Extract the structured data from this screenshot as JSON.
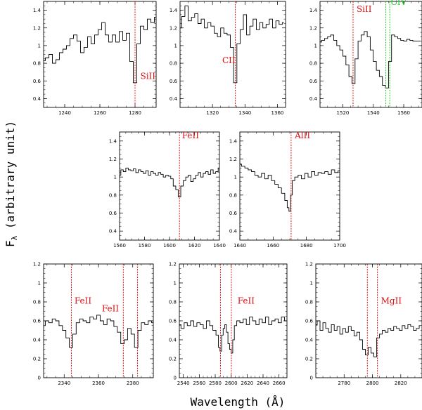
{
  "figure": {
    "xlabel": "Wavelength (Å)",
    "ylabel_symbol": "F",
    "ylabel_subscript": "λ",
    "ylabel_rest": " (arbitrary unit)"
  },
  "colors": {
    "frame": "#000000",
    "spectrum": "#000000",
    "red_line": "#dd1111",
    "green_line": "#22cc22"
  },
  "chart_data": [
    {
      "type": "line",
      "xlim": [
        1228,
        1292
      ],
      "ylim": [
        0.3,
        1.5
      ],
      "xticks": [
        1240,
        1260,
        1280
      ],
      "yticks": [
        0.4,
        0.6,
        0.8,
        1,
        1.2,
        1.4
      ],
      "lines": [
        {
          "wavelength": 1280,
          "color": "red"
        }
      ],
      "labels": [
        {
          "text": "SiII",
          "color": "red",
          "x": 1283,
          "y": 0.62
        }
      ],
      "spectrum": {
        "x": [
          1228,
          1230,
          1232,
          1234,
          1236,
          1238,
          1240,
          1242,
          1244,
          1246,
          1248,
          1250,
          1252,
          1254,
          1256,
          1258,
          1260,
          1262,
          1264,
          1266,
          1268,
          1270,
          1272,
          1274,
          1276,
          1278,
          1280,
          1282,
          1284,
          1286,
          1288,
          1290,
          1292
        ],
        "y": [
          0.83,
          0.86,
          0.9,
          0.8,
          0.84,
          0.92,
          0.96,
          1.0,
          1.08,
          1.12,
          1.05,
          0.92,
          0.98,
          1.1,
          1.02,
          1.12,
          1.18,
          1.26,
          1.12,
          1.04,
          1.12,
          1.04,
          1.16,
          1.06,
          1.14,
          0.82,
          0.58,
          1.02,
          1.22,
          1.18,
          1.3,
          1.26,
          1.32
        ]
      }
    },
    {
      "type": "line",
      "xlim": [
        1300,
        1365
      ],
      "ylim": [
        0.3,
        1.5
      ],
      "xticks": [
        1320,
        1340,
        1360
      ],
      "yticks": [
        0.4,
        0.6,
        0.8,
        1,
        1.2,
        1.4
      ],
      "lines": [
        {
          "wavelength": 1334,
          "color": "red"
        }
      ],
      "labels": [
        {
          "text": "CII",
          "color": "red",
          "x": 1326,
          "y": 0.8
        }
      ],
      "spectrum": {
        "x": [
          1300,
          1302,
          1304,
          1306,
          1308,
          1310,
          1312,
          1314,
          1316,
          1318,
          1320,
          1322,
          1324,
          1326,
          1328,
          1330,
          1332,
          1334,
          1336,
          1338,
          1340,
          1342,
          1344,
          1346,
          1348,
          1350,
          1352,
          1354,
          1356,
          1358,
          1360,
          1362,
          1364
        ],
        "y": [
          1.2,
          1.33,
          1.45,
          1.28,
          1.32,
          1.36,
          1.25,
          1.3,
          1.2,
          1.26,
          1.22,
          1.14,
          1.1,
          1.2,
          1.14,
          1.12,
          0.98,
          0.58,
          1.02,
          1.18,
          1.35,
          1.12,
          1.22,
          1.3,
          1.18,
          1.26,
          1.2,
          1.24,
          1.3,
          1.2,
          1.28,
          1.24,
          1.26
        ]
      }
    },
    {
      "type": "line",
      "xlim": [
        1505,
        1572
      ],
      "ylim": [
        0.3,
        1.5
      ],
      "xticks": [
        1520,
        1540,
        1560
      ],
      "yticks": [
        0.4,
        0.6,
        0.8,
        1,
        1.2,
        1.4
      ],
      "lines": [
        {
          "wavelength": 1526.7,
          "color": "red"
        },
        {
          "wavelength": 1548.2,
          "color": "green"
        },
        {
          "wavelength": 1550.8,
          "color": "green"
        }
      ],
      "labels": [
        {
          "text": "SiII",
          "color": "red",
          "x": 1529,
          "y": 1.38
        },
        {
          "text": "CIV",
          "color": "green",
          "x": 1551.5,
          "y": 1.46
        }
      ],
      "spectrum": {
        "x": [
          1505,
          1507,
          1509,
          1511,
          1513,
          1515,
          1517,
          1519,
          1521,
          1523,
          1525,
          1527,
          1529,
          1531,
          1533,
          1535,
          1537,
          1539,
          1541,
          1543,
          1545,
          1547,
          1549,
          1551,
          1553,
          1555,
          1557,
          1559,
          1561,
          1563,
          1565,
          1567,
          1569,
          1571
        ],
        "y": [
          1.04,
          1.06,
          1.08,
          1.1,
          1.12,
          1.06,
          1.0,
          0.95,
          0.88,
          0.78,
          0.65,
          0.57,
          0.85,
          1.05,
          1.12,
          1.16,
          1.1,
          0.95,
          0.82,
          0.72,
          0.65,
          0.55,
          0.52,
          0.82,
          1.12,
          1.1,
          1.08,
          1.06,
          1.05,
          1.07,
          1.06,
          1.05,
          1.05,
          1.05
        ]
      }
    },
    {
      "type": "line",
      "xlim": [
        1560,
        1640
      ],
      "ylim": [
        0.3,
        1.5
      ],
      "xticks": [
        1560,
        1580,
        1600,
        1620,
        1640
      ],
      "yticks": [
        0.4,
        0.6,
        0.8,
        1,
        1.2,
        1.4
      ],
      "lines": [
        {
          "wavelength": 1608,
          "color": "red"
        }
      ],
      "labels": [
        {
          "text": "FeII",
          "color": "red",
          "x": 1610,
          "y": 1.43
        }
      ],
      "spectrum": {
        "x": [
          1560,
          1562,
          1564,
          1566,
          1568,
          1570,
          1572,
          1574,
          1576,
          1578,
          1580,
          1582,
          1584,
          1586,
          1588,
          1590,
          1592,
          1594,
          1596,
          1598,
          1600,
          1602,
          1604,
          1606,
          1608,
          1610,
          1612,
          1614,
          1616,
          1618,
          1620,
          1622,
          1624,
          1626,
          1628,
          1630,
          1632,
          1634,
          1636,
          1638,
          1640
        ],
        "y": [
          1.02,
          1.08,
          1.06,
          1.1,
          1.08,
          1.07,
          1.09,
          1.05,
          1.08,
          1.06,
          1.04,
          1.07,
          1.02,
          1.06,
          1.04,
          1.02,
          1.05,
          1.03,
          1.0,
          1.02,
          1.01,
          0.98,
          0.9,
          0.86,
          0.78,
          0.9,
          0.96,
          1.0,
          1.02,
          0.95,
          0.98,
          1.02,
          1.05,
          1.0,
          1.04,
          1.06,
          1.03,
          1.08,
          1.04,
          1.06,
          1.1
        ]
      }
    },
    {
      "type": "line",
      "xlim": [
        1640,
        1700
      ],
      "ylim": [
        0.3,
        1.5
      ],
      "xticks": [
        1640,
        1660,
        1680,
        1700
      ],
      "yticks": [
        0.4,
        0.6,
        0.8,
        1,
        1.2,
        1.4
      ],
      "lines": [
        {
          "wavelength": 1670.8,
          "color": "red"
        }
      ],
      "labels": [
        {
          "text": "AlII",
          "color": "red",
          "x": 1673,
          "y": 1.43
        }
      ],
      "spectrum": {
        "x": [
          1640,
          1642,
          1644,
          1646,
          1648,
          1650,
          1652,
          1654,
          1656,
          1658,
          1660,
          1662,
          1664,
          1666,
          1668,
          1669,
          1670,
          1671,
          1672,
          1674,
          1676,
          1678,
          1680,
          1682,
          1684,
          1686,
          1688,
          1690,
          1692,
          1694,
          1696,
          1698,
          1700
        ],
        "y": [
          1.14,
          1.12,
          1.1,
          1.08,
          1.06,
          1.02,
          1.0,
          1.04,
          0.98,
          1.02,
          0.96,
          0.92,
          0.88,
          0.82,
          0.74,
          0.66,
          0.62,
          0.8,
          0.96,
          1.0,
          1.02,
          0.98,
          1.04,
          1.0,
          1.06,
          1.02,
          1.05,
          1.04,
          1.06,
          1.03,
          1.08,
          1.05,
          1.07
        ]
      }
    },
    {
      "type": "line",
      "xlim": [
        2328,
        2392
      ],
      "ylim": [
        0,
        1.2
      ],
      "xticks": [
        2340,
        2360,
        2380
      ],
      "yticks": [
        0,
        0.2,
        0.4,
        0.6,
        0.8,
        1,
        1.2
      ],
      "lines": [
        {
          "wavelength": 2344.2,
          "color": "red"
        },
        {
          "wavelength": 2374.5,
          "color": "red"
        },
        {
          "wavelength": 2382.8,
          "color": "red"
        }
      ],
      "labels": [
        {
          "text": "FeII",
          "color": "red",
          "x": 2346,
          "y": 0.78
        },
        {
          "text": "FeII",
          "color": "red",
          "x": 2362,
          "y": 0.7
        }
      ],
      "spectrum": {
        "x": [
          2328,
          2330,
          2332,
          2334,
          2336,
          2338,
          2340,
          2342,
          2344,
          2346,
          2348,
          2350,
          2352,
          2354,
          2356,
          2358,
          2360,
          2362,
          2364,
          2366,
          2368,
          2370,
          2372,
          2374,
          2376,
          2378,
          2380,
          2382,
          2384,
          2386,
          2388,
          2390,
          2392
        ],
        "y": [
          0.55,
          0.6,
          0.58,
          0.62,
          0.6,
          0.55,
          0.5,
          0.42,
          0.32,
          0.46,
          0.58,
          0.62,
          0.6,
          0.58,
          0.64,
          0.62,
          0.66,
          0.6,
          0.56,
          0.62,
          0.6,
          0.54,
          0.48,
          0.36,
          0.4,
          0.52,
          0.46,
          0.32,
          0.5,
          0.58,
          0.56,
          0.6,
          0.58
        ]
      }
    },
    {
      "type": "line",
      "xlim": [
        2535,
        2670
      ],
      "ylim": [
        0,
        1.2
      ],
      "xticks": [
        2540,
        2560,
        2580,
        2600,
        2620,
        2640,
        2660
      ],
      "yticks": [
        0,
        0.2,
        0.4,
        0.6,
        0.8,
        1,
        1.2
      ],
      "lines": [
        {
          "wavelength": 2586.6,
          "color": "red"
        },
        {
          "wavelength": 2600.2,
          "color": "red"
        }
      ],
      "labels": [
        {
          "text": "FeII",
          "color": "red",
          "x": 2608,
          "y": 0.78
        }
      ],
      "spectrum": {
        "x": [
          2535,
          2539,
          2543,
          2547,
          2551,
          2555,
          2559,
          2563,
          2567,
          2571,
          2575,
          2579,
          2583,
          2585,
          2587,
          2589,
          2591,
          2593,
          2595,
          2597,
          2599,
          2601,
          2603,
          2605,
          2609,
          2613,
          2617,
          2621,
          2625,
          2629,
          2633,
          2637,
          2641,
          2645,
          2649,
          2653,
          2657,
          2661,
          2665,
          2669
        ],
        "y": [
          0.56,
          0.52,
          0.58,
          0.55,
          0.6,
          0.54,
          0.58,
          0.56,
          0.52,
          0.6,
          0.55,
          0.5,
          0.45,
          0.32,
          0.28,
          0.45,
          0.52,
          0.56,
          0.48,
          0.36,
          0.3,
          0.26,
          0.4,
          0.55,
          0.6,
          0.58,
          0.62,
          0.56,
          0.64,
          0.6,
          0.56,
          0.62,
          0.58,
          0.64,
          0.56,
          0.6,
          0.62,
          0.58,
          0.64,
          0.6
        ]
      }
    },
    {
      "type": "line",
      "xlim": [
        2760,
        2835
      ],
      "ylim": [
        0,
        1.2
      ],
      "xticks": [
        2780,
        2800,
        2820
      ],
      "yticks": [
        0,
        0.2,
        0.4,
        0.6,
        0.8,
        1,
        1.2
      ],
      "lines": [
        {
          "wavelength": 2796.4,
          "color": "red"
        },
        {
          "wavelength": 2803.5,
          "color": "red"
        }
      ],
      "labels": [
        {
          "text": "MgII",
          "color": "red",
          "x": 2806,
          "y": 0.78
        }
      ],
      "spectrum": {
        "x": [
          2760,
          2762,
          2764,
          2766,
          2768,
          2770,
          2772,
          2774,
          2776,
          2778,
          2780,
          2782,
          2784,
          2786,
          2788,
          2790,
          2792,
          2794,
          2796,
          2798,
          2800,
          2802,
          2804,
          2806,
          2808,
          2810,
          2812,
          2814,
          2816,
          2818,
          2820,
          2822,
          2824,
          2826,
          2828,
          2830,
          2832,
          2834
        ],
        "y": [
          0.56,
          0.6,
          0.5,
          0.58,
          0.52,
          0.48,
          0.56,
          0.5,
          0.54,
          0.46,
          0.52,
          0.48,
          0.54,
          0.5,
          0.44,
          0.48,
          0.4,
          0.3,
          0.24,
          0.32,
          0.26,
          0.22,
          0.42,
          0.46,
          0.5,
          0.48,
          0.52,
          0.5,
          0.54,
          0.52,
          0.5,
          0.55,
          0.52,
          0.56,
          0.54,
          0.5,
          0.52,
          0.55
        ]
      }
    }
  ]
}
